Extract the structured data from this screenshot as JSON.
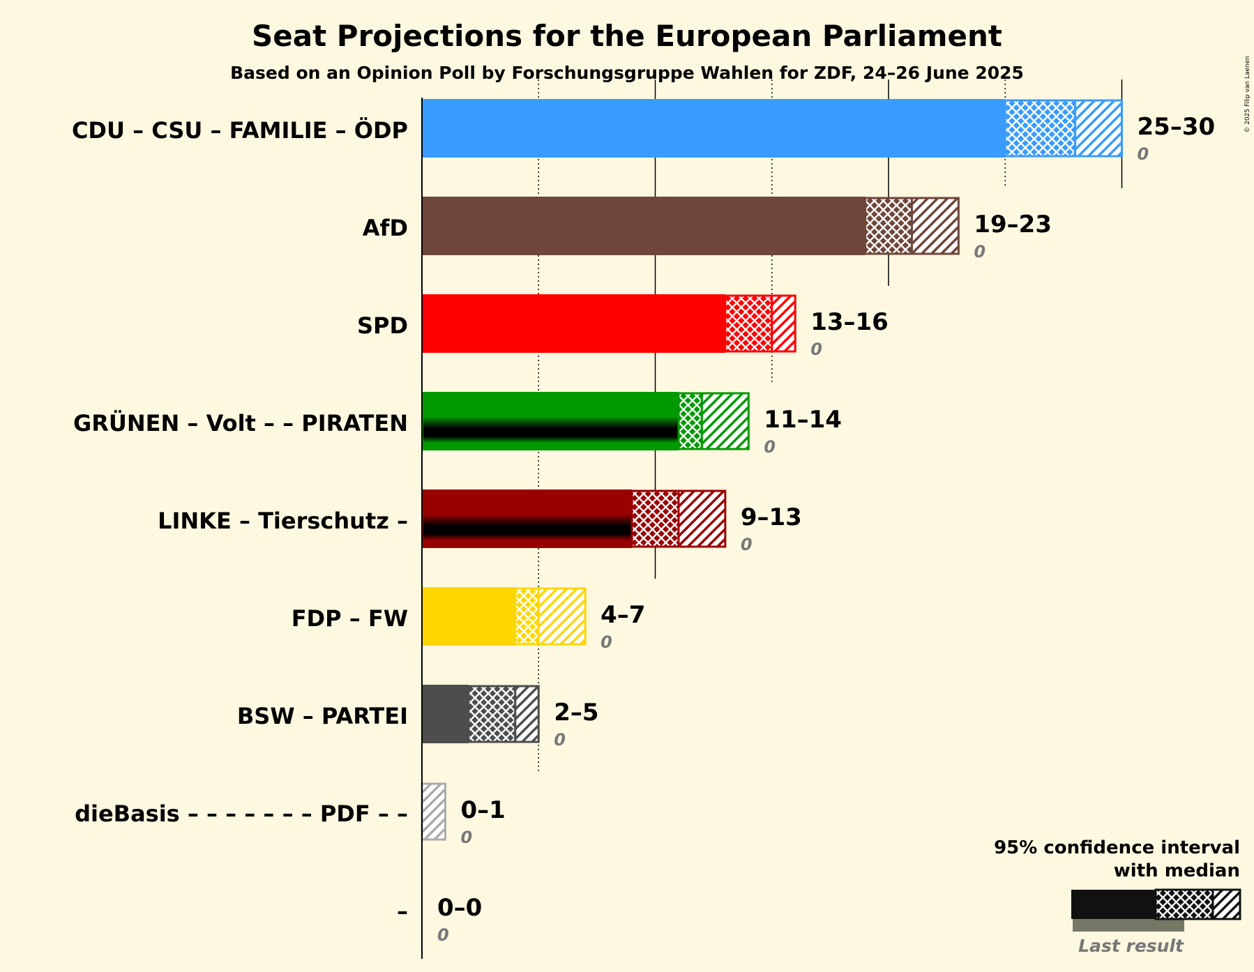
{
  "title": "Seat Projections for the European Parliament",
  "subtitle": "Based on an Opinion Poll by Forschungsgruppe Wahlen for ZDF, 24–26 June 2025",
  "copyright": "© 2025 Filip van Laenen",
  "legend": {
    "line1": "95% confidence interval",
    "line2": "with median",
    "last_result": "Last result"
  },
  "chart_data": {
    "type": "bar",
    "orientation": "horizontal",
    "x_range": [
      0,
      30
    ],
    "gridlines": [
      5,
      10,
      15,
      20,
      25,
      30
    ],
    "categories": [
      "CDU – CSU – FAMILIE – ÖDP",
      "AfD",
      "SPD",
      "GRÜNEN – Volt – – PIRATEN",
      "LINKE – Tierschutz –",
      "FDP – FW",
      "BSW – PARTEI",
      "dieBasis – – – – – – – PDF – –",
      "–"
    ],
    "series": [
      {
        "party": "CDU – CSU – FAMILIE – ÖDP",
        "low": 25,
        "median": 28,
        "high": 30,
        "range_label": "25–30",
        "last_result": 0,
        "color": "#3a9bff",
        "has_overlay": false
      },
      {
        "party": "AfD",
        "low": 19,
        "median": 21,
        "high": 23,
        "range_label": "19–23",
        "last_result": 0,
        "color": "#6e463b",
        "has_overlay": false
      },
      {
        "party": "SPD",
        "low": 13,
        "median": 15,
        "high": 16,
        "range_label": "13–16",
        "last_result": 0,
        "color": "#ff0000",
        "has_overlay": false
      },
      {
        "party": "GRÜNEN – Volt – – PIRATEN",
        "low": 11,
        "median": 12,
        "high": 14,
        "range_label": "11–14",
        "last_result": 0,
        "color": "#009900",
        "has_overlay": true
      },
      {
        "party": "LINKE – Tierschutz –",
        "low": 9,
        "median": 11,
        "high": 13,
        "range_label": "9–13",
        "last_result": 0,
        "color": "#990000",
        "has_overlay": true
      },
      {
        "party": "FDP – FW",
        "low": 4,
        "median": 5,
        "high": 7,
        "range_label": "4–7",
        "last_result": 0,
        "color": "#ffd700",
        "has_overlay": false
      },
      {
        "party": "BSW – PARTEI",
        "low": 2,
        "median": 4,
        "high": 5,
        "range_label": "2–5",
        "last_result": 0,
        "color": "#4d4d4d",
        "has_overlay": false
      },
      {
        "party": "dieBasis – – – – – – – PDF – –",
        "low": 0,
        "median": 0,
        "high": 1,
        "range_label": "0–1",
        "last_result": 0,
        "color": "#aaaaaa",
        "has_overlay": false
      },
      {
        "party": "–",
        "low": 0,
        "median": 0,
        "high": 0,
        "range_label": "0–0",
        "last_result": 0,
        "color": "#aaaaaa",
        "has_overlay": false
      }
    ]
  }
}
